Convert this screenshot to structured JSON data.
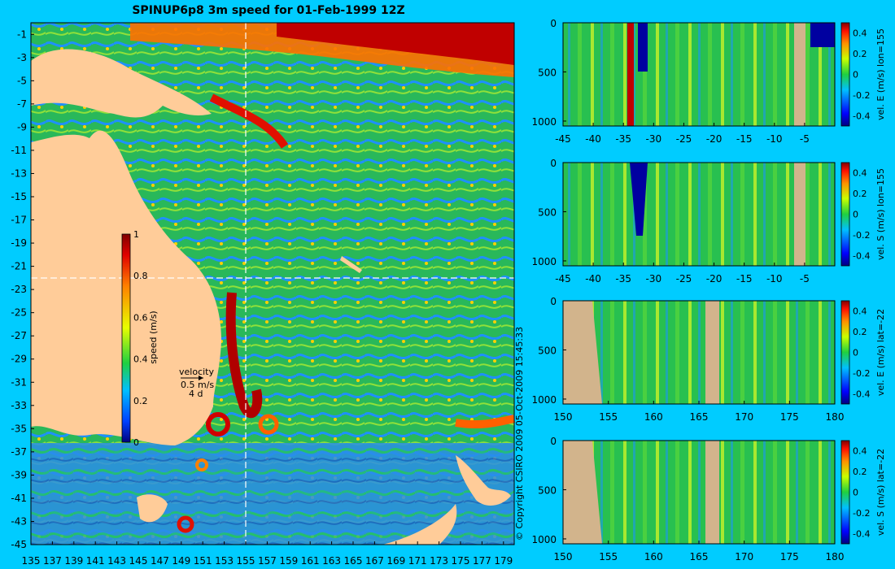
{
  "title": "SPINUP6p8 3m speed for 01-Feb-1999 12Z",
  "copyright": "© Copyright CSIRO 2009   05-Oct-2009 15:45:33",
  "map": {
    "x_ticks": [
      "135",
      "137",
      "139",
      "141",
      "143",
      "145",
      "147",
      "149",
      "151",
      "153",
      "155",
      "157",
      "159",
      "161",
      "163",
      "165",
      "167",
      "169",
      "171",
      "173",
      "175",
      "177",
      "179"
    ],
    "y_ticks": [
      "-1",
      "-3",
      "-5",
      "-7",
      "-9",
      "-11",
      "-13",
      "-15",
      "-17",
      "-19",
      "-21",
      "-23",
      "-25",
      "-27",
      "-29",
      "-31",
      "-33",
      "-35",
      "-37",
      "-39",
      "-41",
      "-43",
      "-45"
    ],
    "colorbar": {
      "label": "speed (m/s)",
      "ticks": [
        "1",
        "0.8",
        "0.6",
        "0.4",
        "0.2",
        "0"
      ]
    },
    "velocity_key": {
      "title": "velocity",
      "speed": "0.5 m/s",
      "time": "4 d"
    }
  },
  "chart_data": [
    {
      "type": "heatmap",
      "title": "SPINUP6p8 3m speed for 01-Feb-1999 12Z",
      "xlabel": "",
      "ylabel": "",
      "xlim": [
        135,
        180
      ],
      "ylim": [
        -45,
        0
      ],
      "colorbar_label": "speed (m/s)",
      "colorbar_range": [
        0,
        1
      ]
    },
    {
      "type": "heatmap",
      "panel": "vel. E (m/s) lon=155",
      "xlabel": "",
      "ylabel": "",
      "x_ticks": [
        "-45",
        "-40",
        "-35",
        "-30",
        "-25",
        "-20",
        "-15",
        "-10",
        "-5"
      ],
      "y_ticks": [
        "0",
        "500",
        "1000"
      ],
      "xlim": [
        -45,
        0
      ],
      "ylim": [
        1050,
        0
      ],
      "colorbar_label": "vel. E (m/s) lon=155",
      "colorbar_ticks": [
        "0.4",
        "0.2",
        "0",
        "-0.2",
        "-0.4"
      ]
    },
    {
      "type": "heatmap",
      "panel": "vel. S (m/s) lon=155",
      "xlabel": "",
      "ylabel": "",
      "x_ticks": [
        "-45",
        "-40",
        "-35",
        "-30",
        "-25",
        "-20",
        "-15",
        "-10",
        "-5"
      ],
      "y_ticks": [
        "0",
        "500",
        "1000"
      ],
      "xlim": [
        -45,
        0
      ],
      "ylim": [
        1050,
        0
      ],
      "colorbar_label": "vel. S (m/s) lon=155",
      "colorbar_ticks": [
        "0.4",
        "0.2",
        "0",
        "-0.2",
        "-0.4"
      ]
    },
    {
      "type": "heatmap",
      "panel": "vel. E (m/s) lat=-22",
      "xlabel": "",
      "ylabel": "",
      "x_ticks": [
        "150",
        "155",
        "160",
        "165",
        "170",
        "175",
        "180"
      ],
      "y_ticks": [
        "0",
        "500",
        "1000"
      ],
      "xlim": [
        150,
        180
      ],
      "ylim": [
        1050,
        0
      ],
      "colorbar_label": "vel. E (m/s) lat=-22",
      "colorbar_ticks": [
        "0.4",
        "0.2",
        "0",
        "-0.2",
        "-0.4"
      ]
    },
    {
      "type": "heatmap",
      "panel": "vel. S (m/s) lat=-22",
      "xlabel": "",
      "ylabel": "",
      "x_ticks": [
        "150",
        "155",
        "160",
        "165",
        "170",
        "175",
        "180"
      ],
      "y_ticks": [
        "0",
        "500",
        "1000"
      ],
      "xlim": [
        150,
        180
      ],
      "ylim": [
        1050,
        0
      ],
      "colorbar_label": "vel. S (m/s) lat=-22",
      "colorbar_ticks": [
        "0.4",
        "0.2",
        "0",
        "-0.2",
        "-0.4"
      ]
    }
  ]
}
